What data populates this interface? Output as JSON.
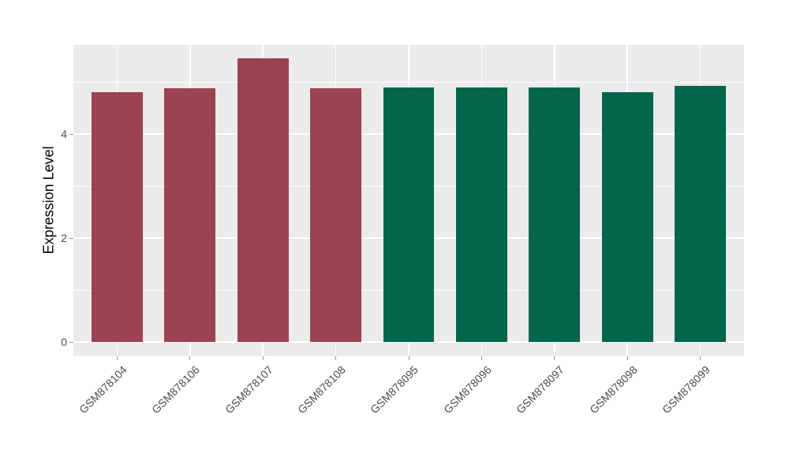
{
  "figure": {
    "background": "#FFFFFF",
    "panel_background": "#EBEBEB",
    "gridline_color": "#FFFFFF",
    "tick_color": "#999999",
    "axis_text_color": "#4D4D4D",
    "axis_title_color": "#000000"
  },
  "chart_data": {
    "type": "bar",
    "title": "",
    "xlabel": "",
    "ylabel": "Expression Level",
    "categories": [
      "GSM878104",
      "GSM878106",
      "GSM878107",
      "GSM878108",
      "GSM878095",
      "GSM878096",
      "GSM878097",
      "GSM878098",
      "GSM878099"
    ],
    "values": [
      4.81,
      4.88,
      5.45,
      4.88,
      4.89,
      4.89,
      4.89,
      4.81,
      4.92
    ],
    "bar_colors": [
      "#9B4350",
      "#9B4350",
      "#9B4350",
      "#9B4350",
      "#03664A",
      "#03664A",
      "#03664A",
      "#03664A",
      "#03664A"
    ],
    "group_colors": {
      "left_group": "#9B4350",
      "right_group": "#03664A"
    },
    "yticks": [
      0,
      2,
      4
    ],
    "minor_yticks": [
      1,
      3,
      5
    ],
    "ylim": [
      0,
      5.72
    ],
    "grid": true,
    "legend": "none",
    "x_label_rotation": 45
  }
}
